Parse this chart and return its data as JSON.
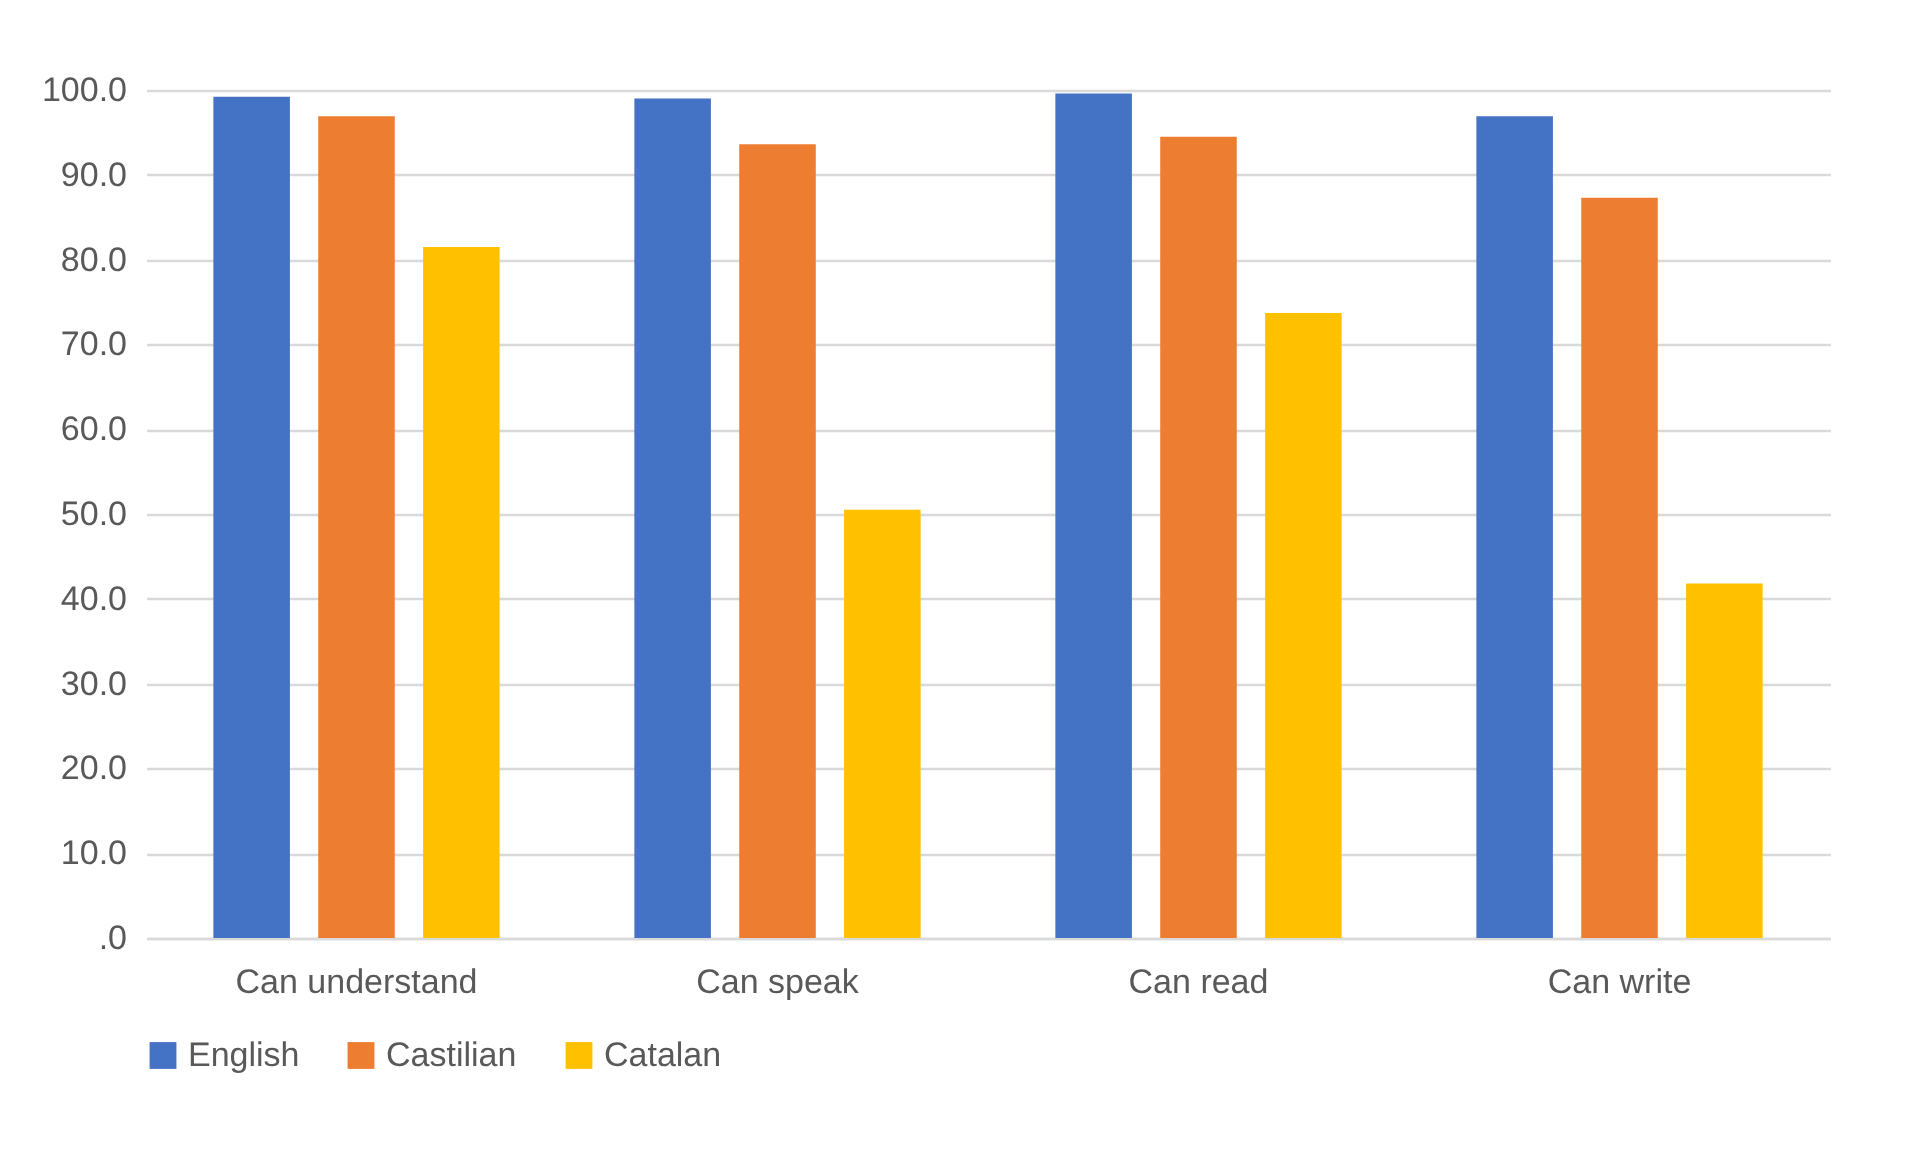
{
  "chart_data": {
    "type": "bar",
    "categories": [
      "Can understand",
      "Can speak",
      "Can read",
      "Can write"
    ],
    "series": [
      {
        "name": "English",
        "color": "#4472c4",
        "values": [
          99.2,
          99.0,
          99.6,
          96.9
        ]
      },
      {
        "name": "Castilian",
        "color": "#ed7d31",
        "values": [
          96.9,
          93.6,
          94.5,
          87.3
        ]
      },
      {
        "name": "Catalan",
        "color": "#ffc000",
        "values": [
          81.5,
          50.5,
          73.7,
          41.8
        ]
      }
    ],
    "ylim": [
      0,
      100
    ],
    "yticks": [
      {
        "value": 0,
        "label": ".0"
      },
      {
        "value": 10,
        "label": "10.0"
      },
      {
        "value": 20,
        "label": "20.0"
      },
      {
        "value": 30,
        "label": "30.0"
      },
      {
        "value": 40,
        "label": "40.0"
      },
      {
        "value": 50,
        "label": "50.0"
      },
      {
        "value": 60,
        "label": "60.0"
      },
      {
        "value": 70,
        "label": "70.0"
      },
      {
        "value": 80,
        "label": "80.0"
      },
      {
        "value": 90,
        "label": "90.0"
      },
      {
        "value": 100,
        "label": "100.0"
      }
    ],
    "grid": true,
    "legend": "bottom"
  }
}
